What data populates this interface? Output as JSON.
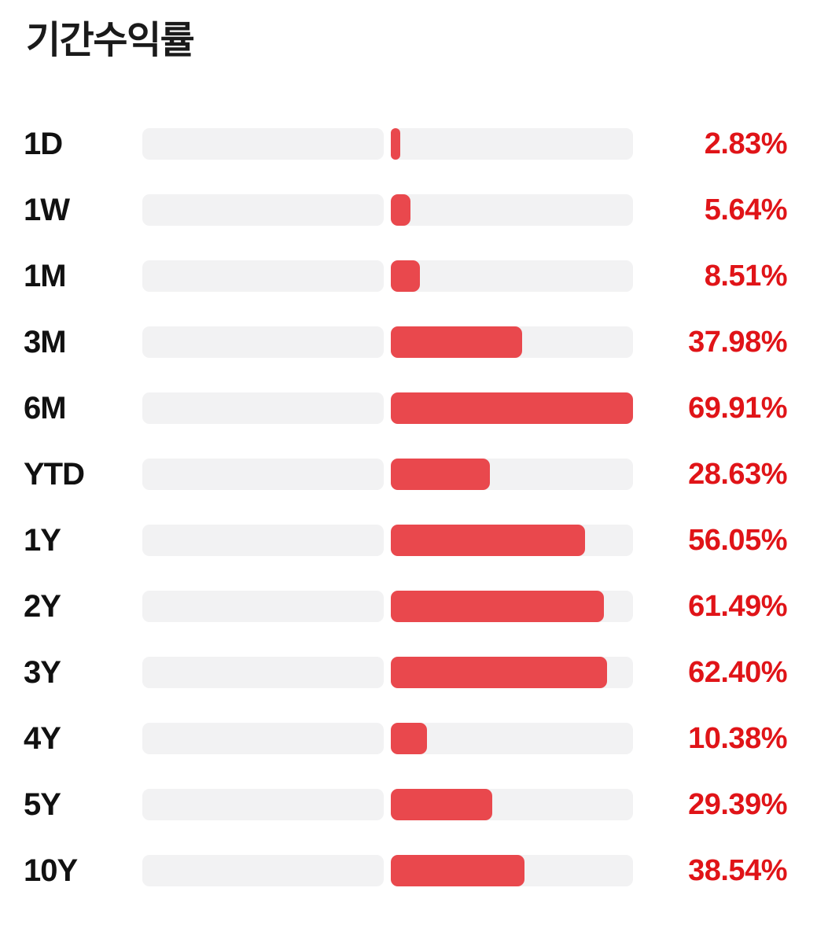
{
  "page": {
    "title": "기간수익률"
  },
  "colors": {
    "background": "#ffffff",
    "track": "#f2f2f3",
    "bar_fill": "#e9484d",
    "value_text": "#e01418",
    "label_text": "#111111",
    "title_text": "#1a1a1a"
  },
  "chart_data": {
    "type": "bar",
    "orientation": "horizontal",
    "title": "기간수익률",
    "categories": [
      "1D",
      "1W",
      "1M",
      "3M",
      "6M",
      "YTD",
      "1Y",
      "2Y",
      "3Y",
      "4Y",
      "5Y",
      "10Y"
    ],
    "values": [
      2.83,
      5.64,
      8.51,
      37.98,
      69.91,
      28.63,
      56.05,
      61.49,
      62.4,
      10.38,
      29.39,
      38.54
    ],
    "value_labels": [
      "2.83%",
      "5.64%",
      "8.51%",
      "37.98%",
      "69.91%",
      "28.63%",
      "56.05%",
      "61.49%",
      "62.40%",
      "10.38%",
      "29.39%",
      "38.54%"
    ],
    "scale_max": 69.91,
    "xlim": [
      -69.91,
      69.91
    ],
    "axis_zero_position": "center",
    "grid": false,
    "legend": false,
    "value_label_position": "right"
  }
}
